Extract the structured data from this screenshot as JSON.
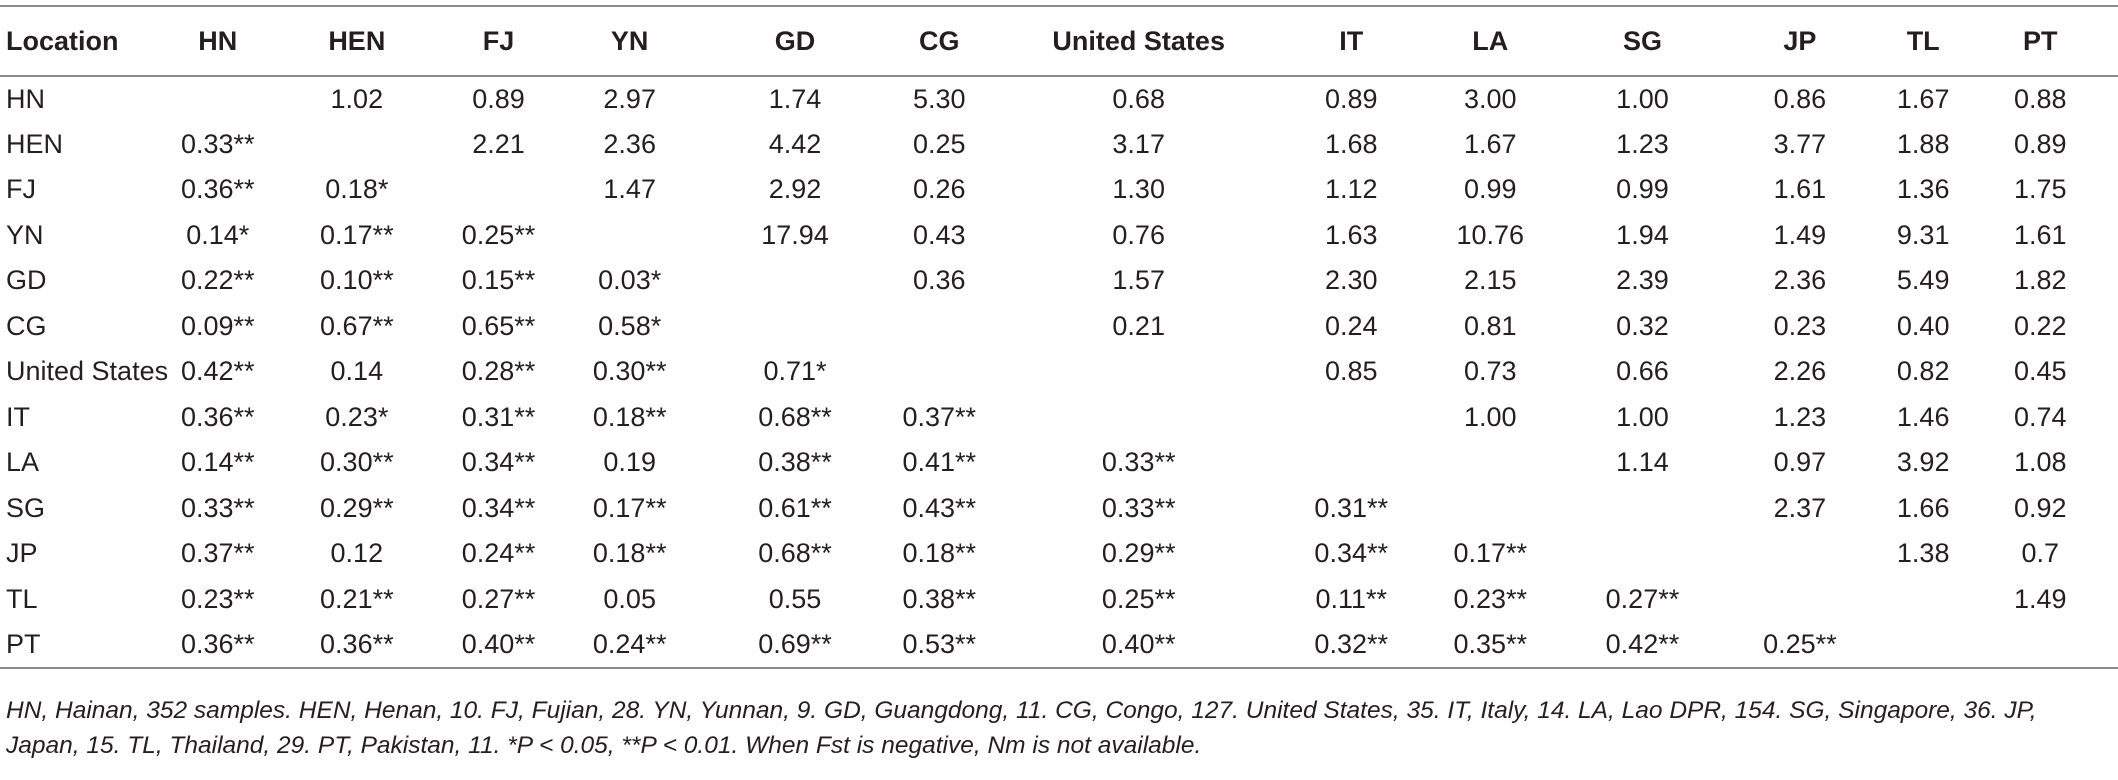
{
  "table": {
    "headers": [
      "Location",
      "HN",
      "HEN",
      "FJ",
      "YN",
      "GD",
      "CG",
      "United States",
      "IT",
      "LA",
      "SG",
      "JP",
      "TL",
      "PT"
    ],
    "rows": [
      [
        "HN",
        "",
        "1.02",
        "0.89",
        "2.97",
        "1.74",
        "5.30",
        "0.68",
        "0.89",
        "3.00",
        "1.00",
        "0.86",
        "1.67",
        "0.88"
      ],
      [
        "HEN",
        "0.33**",
        "",
        "2.21",
        "2.36",
        "4.42",
        "0.25",
        "3.17",
        "1.68",
        "1.67",
        "1.23",
        "3.77",
        "1.88",
        "0.89"
      ],
      [
        "FJ",
        "0.36**",
        "0.18*",
        "",
        "1.47",
        "2.92",
        "0.26",
        "1.30",
        "1.12",
        "0.99",
        "0.99",
        "1.61",
        "1.36",
        "1.75"
      ],
      [
        "YN",
        "0.14*",
        "0.17**",
        "0.25**",
        "",
        "17.94",
        "0.43",
        "0.76",
        "1.63",
        "10.76",
        "1.94",
        "1.49",
        "9.31",
        "1.61"
      ],
      [
        "GD",
        "0.22**",
        "0.10**",
        "0.15**",
        "0.03*",
        "",
        "0.36",
        "1.57",
        "2.30",
        "2.15",
        "2.39",
        "2.36",
        "5.49",
        "1.82"
      ],
      [
        "CG",
        "0.09**",
        "0.67**",
        "0.65**",
        "0.58*",
        "",
        "",
        "0.21",
        "0.24",
        "0.81",
        "0.32",
        "0.23",
        "0.40",
        "0.22"
      ],
      [
        "United States",
        "0.42**",
        "0.14",
        "0.28**",
        "0.30**",
        "0.71*",
        "",
        "",
        "0.85",
        "0.73",
        "0.66",
        "2.26",
        "0.82",
        "0.45"
      ],
      [
        "IT",
        "0.36**",
        "0.23*",
        "0.31**",
        "0.18**",
        "0.68**",
        "0.37**",
        "",
        "",
        "1.00",
        "1.00",
        "1.23",
        "1.46",
        "0.74"
      ],
      [
        "LA",
        "0.14**",
        "0.30**",
        "0.34**",
        "0.19",
        "0.38**",
        "0.41**",
        "0.33**",
        "",
        "",
        "1.14",
        "0.97",
        "3.92",
        "1.08"
      ],
      [
        "SG",
        "0.33**",
        "0.29**",
        "0.34**",
        "0.17**",
        "0.61**",
        "0.43**",
        "0.33**",
        "0.31**",
        "",
        "",
        "2.37",
        "1.66",
        "0.92"
      ],
      [
        "JP",
        "0.37**",
        "0.12",
        "0.24**",
        "0.18**",
        "0.68**",
        "0.18**",
        "0.29**",
        "0.34**",
        "0.17**",
        "",
        "",
        "1.38",
        "0.7"
      ],
      [
        "TL",
        "0.23**",
        "0.21**",
        "0.27**",
        "0.05",
        "0.55",
        "0.38**",
        "0.25**",
        "0.11**",
        "0.23**",
        "0.27**",
        "",
        "",
        "1.49"
      ],
      [
        "PT",
        "0.36**",
        "0.36**",
        "0.40**",
        "0.24**",
        "0.69**",
        "0.53**",
        "0.40**",
        "0.32**",
        "0.35**",
        "0.42**",
        "0.25**",
        "",
        ""
      ]
    ]
  },
  "footnote": "HN, Hainan, 352 samples. HEN, Henan, 10. FJ, Fujian, 28. YN, Yunnan, 9. GD, Guangdong, 11. CG, Congo, 127. United States, 35. IT, Italy, 14. LA, Lao DPR, 154. SG, Singapore, 36. JP, Japan, 15. TL, Thailand, 29. PT, Pakistan, 11. *P < 0.05, **P < 0.01. When Fst is negative, Nm is not available."
}
